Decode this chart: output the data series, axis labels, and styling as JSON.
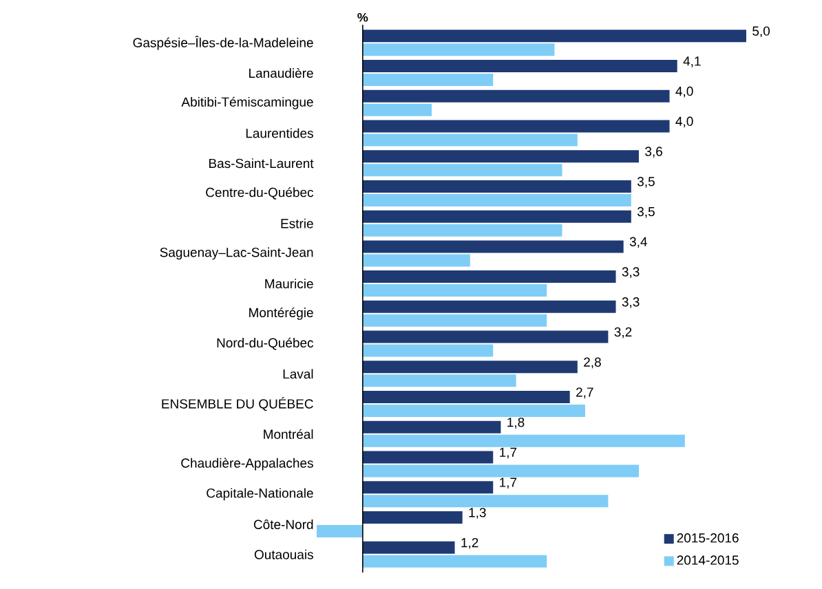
{
  "chart_data": {
    "type": "bar",
    "orientation": "horizontal",
    "xlabel": "%",
    "categories": [
      "Gaspésie–Îles-de-la-Madeleine",
      "Lanaudière",
      "Abitibi-Témiscamingue",
      "Laurentides",
      "Bas-Saint-Laurent",
      "Centre-du-Québec",
      "Estrie",
      "Saguenay–Lac-Saint-Jean",
      "Mauricie",
      "Montérégie",
      "Nord-du-Québec",
      "Laval",
      "ENSEMBLE DU QUÉBEC",
      "Montréal",
      "Chaudière-Appalaches",
      "Capitale-Nationale",
      "Côte-Nord",
      "Outaouais"
    ],
    "series": [
      {
        "name": "2015-2016",
        "color": "#1f3a73",
        "values": [
          5.0,
          4.1,
          4.0,
          4.0,
          3.6,
          3.5,
          3.5,
          3.4,
          3.3,
          3.3,
          3.2,
          2.8,
          2.7,
          1.8,
          1.7,
          1.7,
          1.3,
          1.2
        ],
        "value_labels": [
          "5,0",
          "4,1",
          "4,0",
          "4,0",
          "3,6",
          "3,5",
          "3,5",
          "3,4",
          "3,3",
          "3,3",
          "3,2",
          "2,8",
          "2,7",
          "1,8",
          "1,7",
          "1,7",
          "1,3",
          "1,2"
        ]
      },
      {
        "name": "2014-2015",
        "color": "#7fcdf6",
        "values": [
          2.5,
          1.7,
          0.9,
          2.8,
          2.6,
          3.5,
          2.6,
          1.4,
          2.4,
          2.4,
          1.7,
          2.0,
          2.9,
          4.2,
          3.6,
          3.2,
          -0.6,
          2.4
        ]
      }
    ],
    "tick_labels": "y",
    "legend": "bottom right",
    "grid": false
  }
}
